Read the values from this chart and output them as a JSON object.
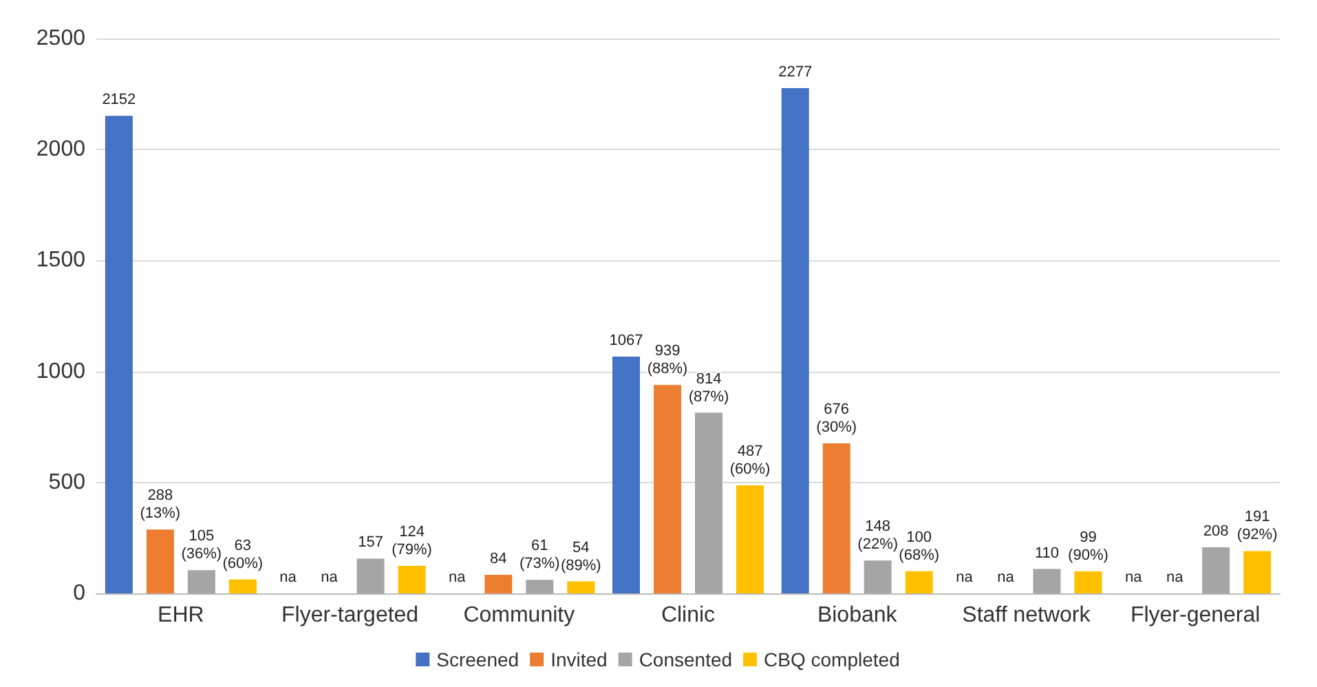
{
  "chart_data": {
    "type": "bar",
    "categories": [
      "EHR",
      "Flyer-targeted",
      "Community",
      "Clinic",
      "Biobank",
      "Staff network",
      "Flyer-general"
    ],
    "series": [
      {
        "name": "Screened",
        "color": "#4472c4",
        "values": [
          2152,
          null,
          null,
          1067,
          2277,
          null,
          null
        ],
        "value_labels": [
          "2152",
          "na",
          "na",
          "1067",
          "2277",
          "na",
          "na"
        ]
      },
      {
        "name": "Invited",
        "color": "#ed7d31",
        "values": [
          288,
          null,
          84,
          939,
          676,
          null,
          null
        ],
        "value_labels": [
          "288 (13%)",
          "na",
          "84",
          "939 (88%)",
          "676 (30%)",
          "na",
          "na"
        ]
      },
      {
        "name": "Consented",
        "color": "#a5a5a5",
        "values": [
          105,
          157,
          61,
          814,
          148,
          110,
          208
        ],
        "value_labels": [
          "105 (36%)",
          "157",
          "61 (73%)",
          "814 (87%)",
          "148 (22%)",
          "110",
          "208"
        ]
      },
      {
        "name": "CBQ completed",
        "color": "#ffc000",
        "values": [
          63,
          124,
          54,
          487,
          100,
          99,
          191
        ],
        "value_labels": [
          "63 (60%)",
          "124 (79%)",
          "54 (89%)",
          "487 (60%)",
          "100 (68%)",
          "99 (90%)",
          "191 (92%)"
        ]
      }
    ],
    "ylim": [
      0,
      2500
    ],
    "yticks": [
      0,
      500,
      1000,
      1500,
      2000,
      2500
    ],
    "grid": "y",
    "legend": "bottom"
  }
}
